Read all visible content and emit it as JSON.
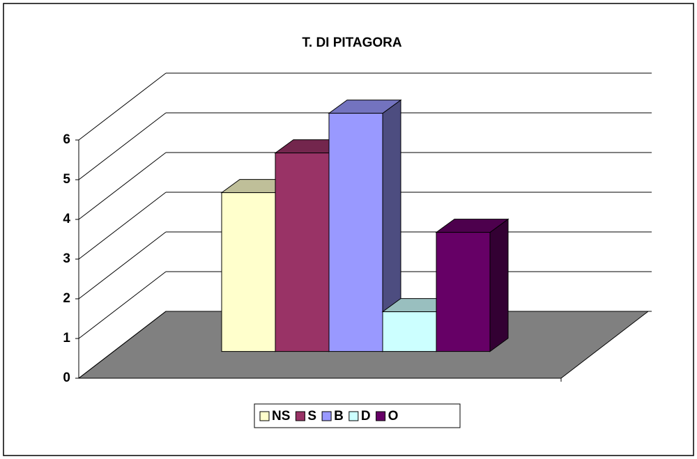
{
  "chart_data": {
    "type": "bar",
    "title": "T. DI PITAGORA",
    "categories": [
      null
    ],
    "series": [
      {
        "name": "NS",
        "color": "#ffffcc",
        "values": [
          4
        ]
      },
      {
        "name": "S",
        "color": "#993366",
        "values": [
          5
        ]
      },
      {
        "name": "B",
        "color": "#9999ff",
        "values": [
          6
        ]
      },
      {
        "name": "D",
        "color": "#ccffff",
        "values": [
          1
        ]
      },
      {
        "name": "O",
        "color": "#660066",
        "values": [
          3
        ]
      }
    ],
    "ylim": [
      0,
      6
    ],
    "yticks": [
      0,
      1,
      2,
      3,
      4,
      5,
      6
    ],
    "grid": true,
    "legend": "bottom"
  }
}
